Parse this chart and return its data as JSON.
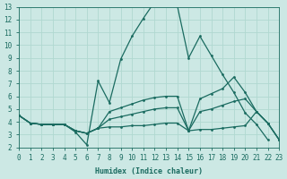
{
  "xlabel": "Humidex (Indice chaleur)",
  "bg_color": "#cce8e4",
  "grid_color": "#b0d8d0",
  "line_color": "#1a6b60",
  "xlim": [
    0,
    23
  ],
  "ylim": [
    2,
    13
  ],
  "xticks": [
    0,
    1,
    2,
    3,
    4,
    5,
    6,
    7,
    8,
    9,
    10,
    11,
    12,
    13,
    14,
    15,
    16,
    17,
    18,
    19,
    20,
    21,
    22,
    23
  ],
  "yticks": [
    2,
    3,
    4,
    5,
    6,
    7,
    8,
    9,
    10,
    11,
    12,
    13
  ],
  "lines": [
    {
      "x": [
        0,
        1,
        2,
        3,
        4,
        5,
        6,
        7,
        8,
        9,
        10,
        11,
        12,
        13,
        14,
        15,
        16,
        17,
        18,
        19,
        20,
        21,
        22
      ],
      "y": [
        4.5,
        3.9,
        3.8,
        3.8,
        3.8,
        3.2,
        2.2,
        7.2,
        5.5,
        8.9,
        10.7,
        12.1,
        13.4,
        13.4,
        13.1,
        9.0,
        10.7,
        9.2,
        7.7,
        6.3,
        4.7,
        3.8,
        2.6
      ]
    },
    {
      "x": [
        0,
        1,
        2,
        3,
        4,
        5,
        6,
        7,
        8,
        9,
        10,
        11,
        12,
        13,
        14,
        15,
        16,
        17,
        18,
        19,
        20,
        21,
        22,
        23
      ],
      "y": [
        4.5,
        3.9,
        3.8,
        3.8,
        3.8,
        3.3,
        3.1,
        3.5,
        4.8,
        5.1,
        5.4,
        5.7,
        5.9,
        6.0,
        6.0,
        3.3,
        5.8,
        6.2,
        6.6,
        7.5,
        6.3,
        4.8,
        3.9,
        2.6
      ]
    },
    {
      "x": [
        0,
        1,
        2,
        3,
        4,
        5,
        6,
        7,
        8,
        9,
        10,
        11,
        12,
        13,
        14,
        15,
        16,
        17,
        18,
        19,
        20,
        21,
        22,
        23
      ],
      "y": [
        4.5,
        3.9,
        3.8,
        3.8,
        3.8,
        3.3,
        3.1,
        3.5,
        4.2,
        4.4,
        4.6,
        4.8,
        5.0,
        5.1,
        5.1,
        3.3,
        4.8,
        5.0,
        5.3,
        5.6,
        5.8,
        4.8,
        3.9,
        2.6
      ]
    },
    {
      "x": [
        0,
        1,
        2,
        3,
        4,
        5,
        6,
        7,
        8,
        9,
        10,
        11,
        12,
        13,
        14,
        15,
        16,
        17,
        18,
        19,
        20,
        21,
        22,
        23
      ],
      "y": [
        4.5,
        3.9,
        3.8,
        3.8,
        3.8,
        3.3,
        3.1,
        3.5,
        3.6,
        3.6,
        3.7,
        3.7,
        3.8,
        3.9,
        3.9,
        3.3,
        3.4,
        3.4,
        3.5,
        3.6,
        3.7,
        4.8,
        3.9,
        2.6
      ]
    }
  ]
}
